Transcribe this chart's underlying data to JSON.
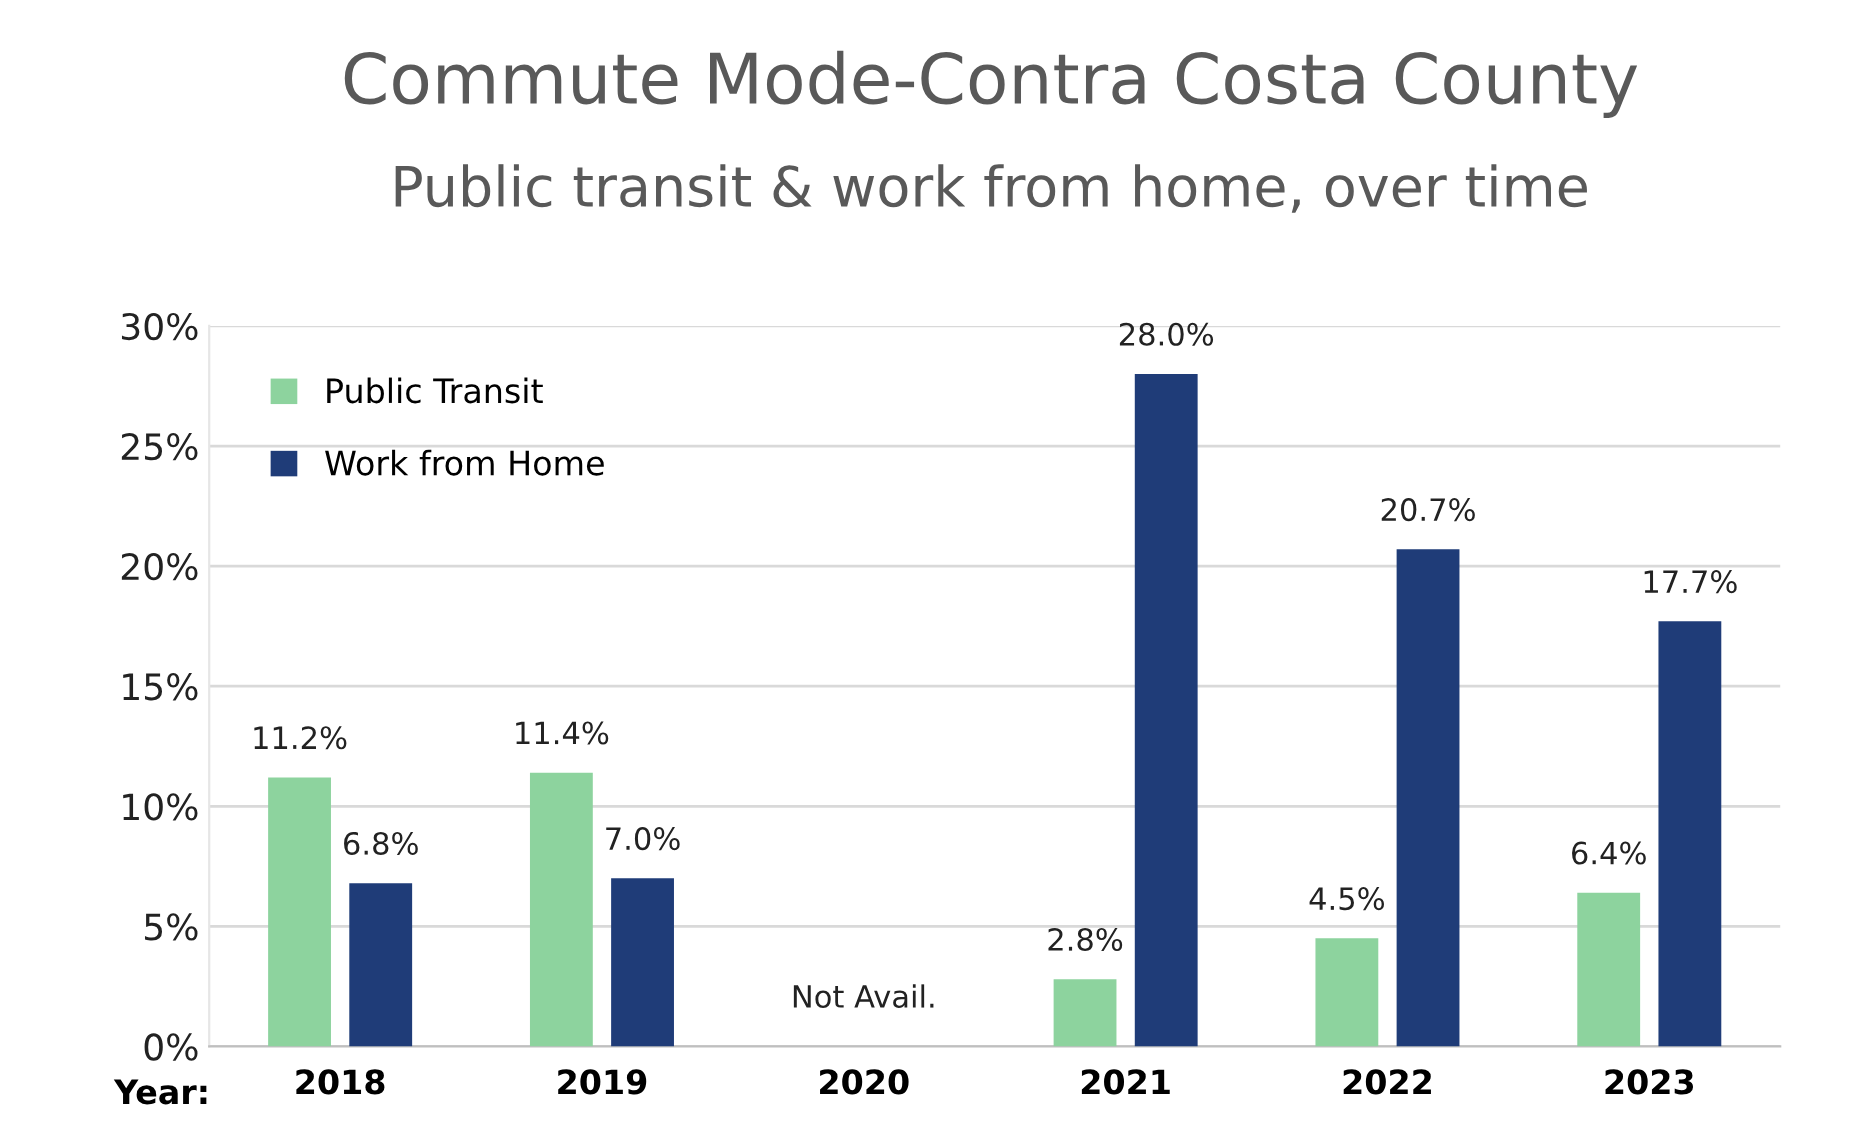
{
  "chart_data": {
    "type": "bar",
    "title": "Commute Mode-Contra Costa County",
    "subtitle": "Public transit & work from home, over time",
    "xlabel": "Year:",
    "categories": [
      "2018",
      "2019",
      "2020",
      "2021",
      "2022",
      "2023"
    ],
    "series": [
      {
        "name": "Public Transit",
        "color": "#8dd39e",
        "values": [
          11.2,
          11.4,
          null,
          2.8,
          4.5,
          6.4
        ],
        "value_labels": [
          "11.2%",
          "11.4%",
          null,
          "2.8%",
          "4.5%",
          "6.4%"
        ]
      },
      {
        "name": "Work from Home",
        "color": "#1f3c78",
        "values": [
          6.8,
          7.0,
          null,
          28.0,
          20.7,
          17.7
        ],
        "value_labels": [
          "6.8%",
          "7.0%",
          null,
          "28.0%",
          "20.7%",
          "17.7%"
        ]
      }
    ],
    "ylim": [
      0,
      30
    ],
    "yticks": [
      {
        "value": 0,
        "label": "0%"
      },
      {
        "value": 5,
        "label": "5%"
      },
      {
        "value": 10,
        "label": "10%"
      },
      {
        "value": 15,
        "label": "15%"
      },
      {
        "value": 20,
        "label": "20%"
      },
      {
        "value": 25,
        "label": "25%"
      },
      {
        "value": 30,
        "label": "30%"
      }
    ],
    "grid": "y",
    "legend": "top left",
    "annotations": [
      "Not Avail."
    ]
  }
}
